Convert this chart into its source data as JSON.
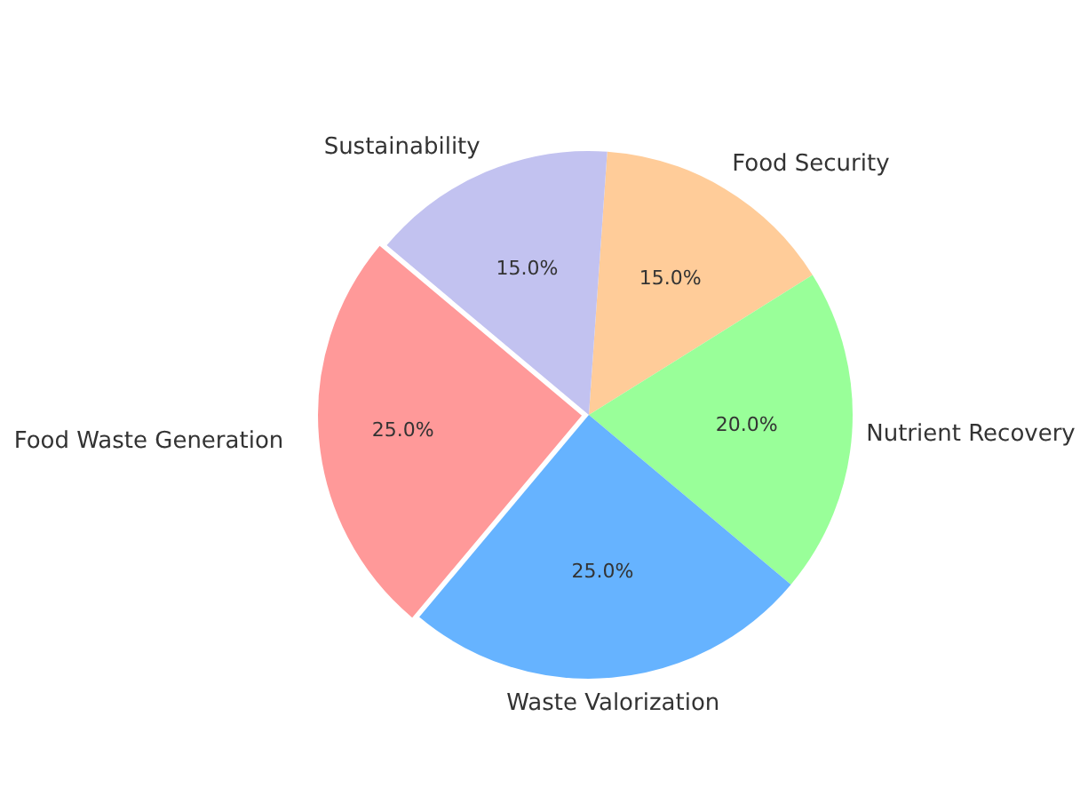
{
  "chart_data": {
    "type": "pie",
    "categories": [
      "Food Security",
      "Nutrient Recovery",
      "Waste Valorization",
      "Food Waste Generation",
      "Sustainability"
    ],
    "values": [
      15,
      20,
      25,
      25,
      15
    ],
    "colors": [
      "#ffcc99",
      "#99ff99",
      "#66b3ff",
      "#ff9999",
      "#c2c2f0"
    ],
    "value_labels": [
      "15.0%",
      "20.0%",
      "25.0%",
      "25.0%",
      "15.0%"
    ],
    "legend": false
  }
}
